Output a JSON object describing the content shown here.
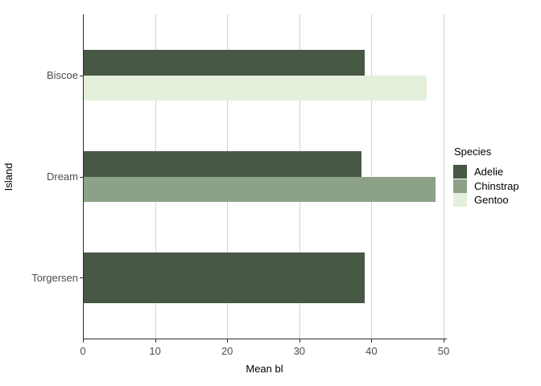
{
  "chart_data": {
    "type": "bar",
    "orientation": "horizontal",
    "title": "",
    "xlabel": "Mean bl",
    "ylabel": "Island",
    "xlim": [
      0,
      50
    ],
    "x_ticks": [
      0,
      10,
      20,
      30,
      40,
      50
    ],
    "categories": [
      "Biscoe",
      "Dream",
      "Torgersen"
    ],
    "grid": "vertical-major-only",
    "legend": {
      "title": "Species",
      "position": "right",
      "entries": [
        {
          "label": "Adelie",
          "color": "#475845"
        },
        {
          "label": "Chinstrap",
          "color": "#8CA186"
        },
        {
          "label": "Gentoo",
          "color": "#E4F0DB"
        }
      ]
    },
    "series_colors": {
      "Adelie": "#475845",
      "Chinstrap": "#8CA186",
      "Gentoo": "#E4F0DB"
    },
    "rows": [
      {
        "island": "Biscoe",
        "bars": [
          {
            "species": "Adelie",
            "value": 39.0
          },
          {
            "species": "Gentoo",
            "value": 47.5
          }
        ]
      },
      {
        "island": "Dream",
        "bars": [
          {
            "species": "Adelie",
            "value": 38.5
          },
          {
            "species": "Chinstrap",
            "value": 48.8
          }
        ]
      },
      {
        "island": "Torgersen",
        "bars": [
          {
            "species": "Adelie",
            "value": 39.0
          }
        ]
      }
    ],
    "colors": {
      "axis_line": "#2b2b2b",
      "gridline": "#d4d4d4",
      "tick_text": "#4d4d4d",
      "title_text": "#000000",
      "background": "#ffffff"
    }
  }
}
